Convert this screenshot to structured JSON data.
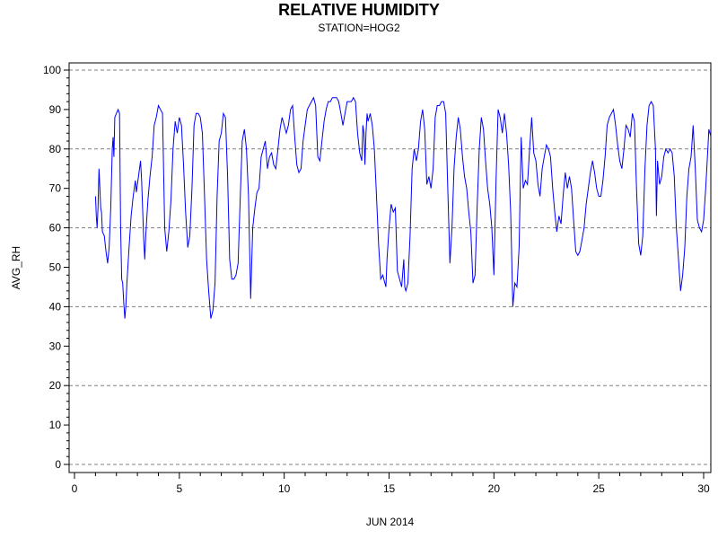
{
  "chart_data": {
    "type": "line",
    "title": "RELATIVE HUMIDITY",
    "subtitle": "STATION=HOG2",
    "xlabel": "JUN 2014",
    "ylabel": "AVG_RH",
    "xlim": [
      0,
      30
    ],
    "ylim": [
      0,
      100
    ],
    "x_ticks": [
      0,
      5,
      10,
      15,
      20,
      25,
      30
    ],
    "y_ticks": [
      0,
      10,
      20,
      30,
      40,
      50,
      60,
      70,
      80,
      90,
      100
    ],
    "grid": {
      "horizontal_dashed_at": [
        0,
        20,
        40,
        60,
        80,
        100
      ]
    },
    "colors": {
      "series": "#0000ff",
      "grid": "#808080",
      "axis": "#000000"
    },
    "series": [
      {
        "points": [
          [
            1.0,
            68
          ],
          [
            1.04,
            63
          ],
          [
            1.08,
            60
          ],
          [
            1.12,
            65
          ],
          [
            1.17,
            75
          ],
          [
            1.21,
            70
          ],
          [
            1.25,
            65
          ],
          [
            1.29,
            64
          ],
          [
            1.33,
            59
          ],
          [
            1.42,
            58
          ],
          [
            1.5,
            54
          ],
          [
            1.58,
            51
          ],
          [
            1.65,
            55
          ],
          [
            1.73,
            65
          ],
          [
            1.8,
            80
          ],
          [
            1.84,
            83
          ],
          [
            1.88,
            78
          ],
          [
            1.92,
            88
          ],
          [
            2.0,
            89
          ],
          [
            2.08,
            90
          ],
          [
            2.15,
            89
          ],
          [
            2.2,
            60
          ],
          [
            2.25,
            47
          ],
          [
            2.3,
            46
          ],
          [
            2.35,
            41
          ],
          [
            2.4,
            37
          ],
          [
            2.45,
            40
          ],
          [
            2.5,
            46
          ],
          [
            2.6,
            55
          ],
          [
            2.7,
            63
          ],
          [
            2.8,
            68
          ],
          [
            2.9,
            72
          ],
          [
            2.95,
            69
          ],
          [
            3.05,
            73
          ],
          [
            3.15,
            77
          ],
          [
            3.2,
            72
          ],
          [
            3.25,
            65
          ],
          [
            3.3,
            57
          ],
          [
            3.35,
            52
          ],
          [
            3.4,
            58
          ],
          [
            3.5,
            67
          ],
          [
            3.6,
            73
          ],
          [
            3.7,
            78
          ],
          [
            3.8,
            86
          ],
          [
            3.9,
            88
          ],
          [
            4.0,
            91
          ],
          [
            4.1,
            90
          ],
          [
            4.2,
            89
          ],
          [
            4.3,
            60
          ],
          [
            4.4,
            54
          ],
          [
            4.5,
            59
          ],
          [
            4.6,
            67
          ],
          [
            4.7,
            80
          ],
          [
            4.8,
            87
          ],
          [
            4.9,
            84
          ],
          [
            5.0,
            88
          ],
          [
            5.1,
            86
          ],
          [
            5.2,
            76
          ],
          [
            5.3,
            64
          ],
          [
            5.4,
            55
          ],
          [
            5.5,
            58
          ],
          [
            5.6,
            70
          ],
          [
            5.7,
            86
          ],
          [
            5.8,
            89
          ],
          [
            5.9,
            89
          ],
          [
            6.0,
            88
          ],
          [
            6.1,
            84
          ],
          [
            6.2,
            68
          ],
          [
            6.3,
            52
          ],
          [
            6.4,
            44
          ],
          [
            6.5,
            37
          ],
          [
            6.6,
            39
          ],
          [
            6.7,
            46
          ],
          [
            6.8,
            68
          ],
          [
            6.9,
            82
          ],
          [
            7.0,
            84
          ],
          [
            7.1,
            89
          ],
          [
            7.2,
            88
          ],
          [
            7.3,
            73
          ],
          [
            7.4,
            52
          ],
          [
            7.5,
            47
          ],
          [
            7.6,
            47
          ],
          [
            7.7,
            48
          ],
          [
            7.8,
            51
          ],
          [
            7.9,
            67
          ],
          [
            8.0,
            82
          ],
          [
            8.1,
            85
          ],
          [
            8.2,
            80
          ],
          [
            8.3,
            68
          ],
          [
            8.4,
            42
          ],
          [
            8.5,
            60
          ],
          [
            8.6,
            65
          ],
          [
            8.7,
            69
          ],
          [
            8.8,
            70
          ],
          [
            8.9,
            78
          ],
          [
            9.0,
            80
          ],
          [
            9.1,
            82
          ],
          [
            9.2,
            75
          ],
          [
            9.3,
            78
          ],
          [
            9.4,
            79
          ],
          [
            9.5,
            76
          ],
          [
            9.6,
            75
          ],
          [
            9.7,
            80
          ],
          [
            9.8,
            85
          ],
          [
            9.9,
            88
          ],
          [
            10.0,
            86
          ],
          [
            10.1,
            84
          ],
          [
            10.2,
            86
          ],
          [
            10.3,
            90
          ],
          [
            10.4,
            91
          ],
          [
            10.5,
            83
          ],
          [
            10.6,
            76
          ],
          [
            10.7,
            74
          ],
          [
            10.8,
            75
          ],
          [
            10.9,
            82
          ],
          [
            11.0,
            86
          ],
          [
            11.1,
            90
          ],
          [
            11.2,
            91
          ],
          [
            11.3,
            92
          ],
          [
            11.4,
            93
          ],
          [
            11.5,
            91
          ],
          [
            11.6,
            78
          ],
          [
            11.7,
            77
          ],
          [
            11.8,
            82
          ],
          [
            11.9,
            87
          ],
          [
            12.0,
            90
          ],
          [
            12.1,
            92
          ],
          [
            12.2,
            92
          ],
          [
            12.3,
            93
          ],
          [
            12.4,
            93
          ],
          [
            12.5,
            93
          ],
          [
            12.6,
            92
          ],
          [
            12.7,
            89
          ],
          [
            12.8,
            86
          ],
          [
            12.9,
            89
          ],
          [
            13.0,
            92
          ],
          [
            13.1,
            92
          ],
          [
            13.2,
            92
          ],
          [
            13.3,
            93
          ],
          [
            13.4,
            92
          ],
          [
            13.5,
            84
          ],
          [
            13.6,
            79
          ],
          [
            13.7,
            77
          ],
          [
            13.75,
            86
          ],
          [
            13.8,
            84
          ],
          [
            13.85,
            76
          ],
          [
            13.9,
            84
          ],
          [
            13.95,
            89
          ],
          [
            14.0,
            87
          ],
          [
            14.1,
            89
          ],
          [
            14.2,
            86
          ],
          [
            14.3,
            80
          ],
          [
            14.4,
            68
          ],
          [
            14.5,
            56
          ],
          [
            14.6,
            47
          ],
          [
            14.7,
            48
          ],
          [
            14.8,
            46
          ],
          [
            14.85,
            45
          ],
          [
            14.9,
            52
          ],
          [
            15.0,
            60
          ],
          [
            15.1,
            66
          ],
          [
            15.2,
            64
          ],
          [
            15.3,
            65
          ],
          [
            15.4,
            49
          ],
          [
            15.5,
            47
          ],
          [
            15.6,
            45
          ],
          [
            15.7,
            52
          ],
          [
            15.75,
            45
          ],
          [
            15.8,
            44
          ],
          [
            15.9,
            46
          ],
          [
            16.0,
            58
          ],
          [
            16.1,
            75
          ],
          [
            16.2,
            80
          ],
          [
            16.3,
            77
          ],
          [
            16.4,
            80
          ],
          [
            16.5,
            87
          ],
          [
            16.6,
            90
          ],
          [
            16.7,
            85
          ],
          [
            16.8,
            71
          ],
          [
            16.9,
            73
          ],
          [
            17.0,
            70
          ],
          [
            17.1,
            75
          ],
          [
            17.2,
            88
          ],
          [
            17.3,
            91
          ],
          [
            17.4,
            91
          ],
          [
            17.5,
            92
          ],
          [
            17.6,
            92
          ],
          [
            17.7,
            89
          ],
          [
            17.8,
            70
          ],
          [
            17.9,
            51
          ],
          [
            18.0,
            60
          ],
          [
            18.1,
            75
          ],
          [
            18.2,
            83
          ],
          [
            18.3,
            88
          ],
          [
            18.4,
            85
          ],
          [
            18.5,
            78
          ],
          [
            18.6,
            73
          ],
          [
            18.7,
            70
          ],
          [
            18.8,
            64
          ],
          [
            18.9,
            59
          ],
          [
            19.0,
            46
          ],
          [
            19.1,
            48
          ],
          [
            19.2,
            65
          ],
          [
            19.3,
            80
          ],
          [
            19.4,
            88
          ],
          [
            19.5,
            85
          ],
          [
            19.6,
            77
          ],
          [
            19.7,
            70
          ],
          [
            19.8,
            66
          ],
          [
            19.9,
            60
          ],
          [
            20.0,
            48
          ],
          [
            20.1,
            72
          ],
          [
            20.2,
            90
          ],
          [
            20.3,
            88
          ],
          [
            20.4,
            84
          ],
          [
            20.5,
            89
          ],
          [
            20.6,
            84
          ],
          [
            20.7,
            76
          ],
          [
            20.8,
            64
          ],
          [
            20.9,
            40
          ],
          [
            21.0,
            46
          ],
          [
            21.1,
            45
          ],
          [
            21.2,
            55
          ],
          [
            21.3,
            83
          ],
          [
            21.4,
            70
          ],
          [
            21.5,
            72
          ],
          [
            21.6,
            71
          ],
          [
            21.7,
            80
          ],
          [
            21.8,
            88
          ],
          [
            21.9,
            79
          ],
          [
            22.0,
            77
          ],
          [
            22.1,
            71
          ],
          [
            22.2,
            68
          ],
          [
            22.3,
            75
          ],
          [
            22.4,
            78
          ],
          [
            22.5,
            81
          ],
          [
            22.6,
            80
          ],
          [
            22.7,
            78
          ],
          [
            22.8,
            70
          ],
          [
            22.9,
            64
          ],
          [
            23.0,
            59
          ],
          [
            23.1,
            63
          ],
          [
            23.2,
            61
          ],
          [
            23.3,
            68
          ],
          [
            23.4,
            74
          ],
          [
            23.5,
            70
          ],
          [
            23.6,
            73
          ],
          [
            23.7,
            70
          ],
          [
            23.8,
            62
          ],
          [
            23.9,
            54
          ],
          [
            24.0,
            53
          ],
          [
            24.1,
            54
          ],
          [
            24.2,
            57
          ],
          [
            24.3,
            60
          ],
          [
            24.4,
            66
          ],
          [
            24.5,
            70
          ],
          [
            24.6,
            74
          ],
          [
            24.7,
            77
          ],
          [
            24.8,
            74
          ],
          [
            24.9,
            70
          ],
          [
            25.0,
            68
          ],
          [
            25.1,
            68
          ],
          [
            25.2,
            72
          ],
          [
            25.3,
            78
          ],
          [
            25.4,
            86
          ],
          [
            25.5,
            88
          ],
          [
            25.6,
            89
          ],
          [
            25.7,
            90
          ],
          [
            25.8,
            86
          ],
          [
            25.9,
            81
          ],
          [
            26.0,
            77
          ],
          [
            26.1,
            75
          ],
          [
            26.2,
            80
          ],
          [
            26.3,
            86
          ],
          [
            26.4,
            85
          ],
          [
            26.5,
            83
          ],
          [
            26.6,
            89
          ],
          [
            26.7,
            87
          ],
          [
            26.8,
            70
          ],
          [
            26.9,
            56
          ],
          [
            27.0,
            53
          ],
          [
            27.1,
            58
          ],
          [
            27.2,
            75
          ],
          [
            27.3,
            86
          ],
          [
            27.4,
            91
          ],
          [
            27.5,
            92
          ],
          [
            27.6,
            91
          ],
          [
            27.7,
            80
          ],
          [
            27.75,
            63
          ],
          [
            27.8,
            77
          ],
          [
            27.9,
            71
          ],
          [
            28.0,
            73
          ],
          [
            28.1,
            78
          ],
          [
            28.2,
            80
          ],
          [
            28.3,
            79
          ],
          [
            28.4,
            80
          ],
          [
            28.5,
            79
          ],
          [
            28.6,
            73
          ],
          [
            28.7,
            60
          ],
          [
            28.8,
            52
          ],
          [
            28.9,
            44
          ],
          [
            29.0,
            48
          ],
          [
            29.1,
            55
          ],
          [
            29.2,
            68
          ],
          [
            29.3,
            75
          ],
          [
            29.4,
            78
          ],
          [
            29.5,
            86
          ],
          [
            29.6,
            75
          ],
          [
            29.7,
            62
          ],
          [
            29.8,
            60
          ],
          [
            29.9,
            59
          ],
          [
            30.0,
            62
          ],
          [
            30.1,
            70
          ],
          [
            30.2,
            80
          ],
          [
            30.25,
            85
          ],
          [
            30.3,
            84
          ],
          [
            30.35,
            83
          ]
        ]
      }
    ]
  }
}
